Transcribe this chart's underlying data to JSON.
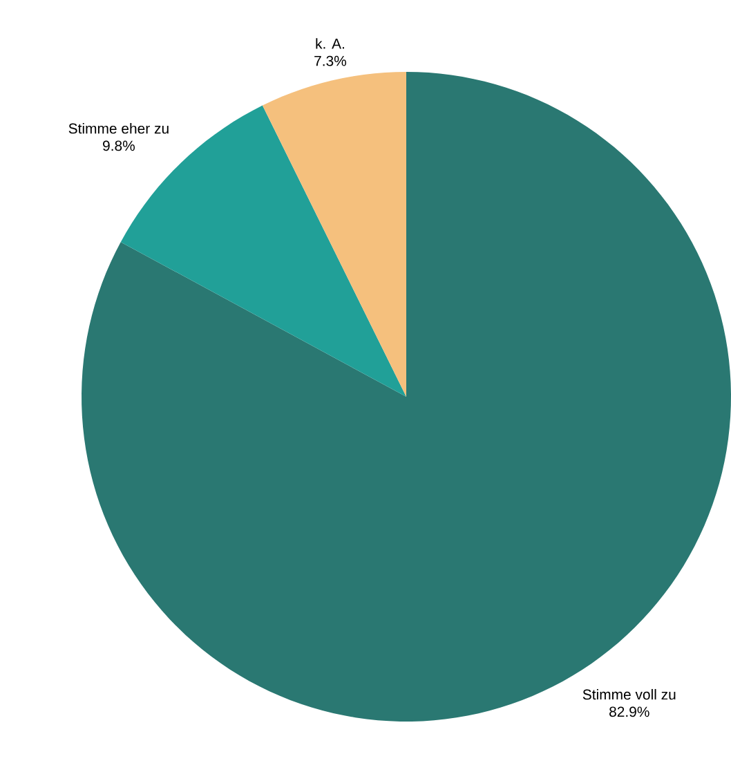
{
  "chart_data": {
    "type": "pie",
    "categories": [
      "Stimme voll zu",
      "Stimme eher zu",
      "k. A."
    ],
    "values": [
      82.9,
      9.8,
      7.3
    ],
    "value_labels": [
      "82.9%",
      "9.8%",
      "7.3%"
    ],
    "colors": [
      "#2a7872",
      "#21a098",
      "#f5c07d"
    ]
  }
}
